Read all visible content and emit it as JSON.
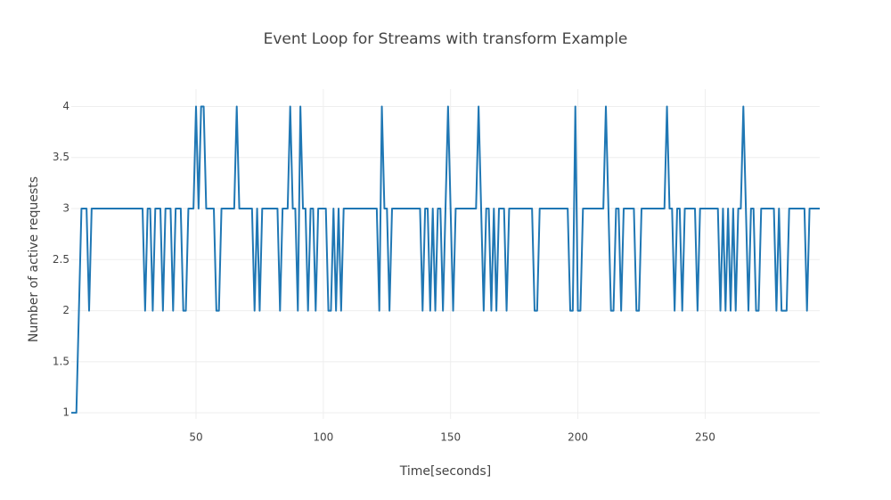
{
  "chart_data": {
    "type": "line",
    "title": "Event Loop for Streams with transform Example",
    "xlabel": "Time[seconds]",
    "ylabel": "Number of active requests",
    "xlim": [
      1,
      295
    ],
    "xticks": [
      50,
      100,
      150,
      200,
      250
    ],
    "ylim": [
      0.94,
      4.17
    ],
    "yticks": [
      1,
      1.5,
      2,
      2.5,
      3,
      3.5,
      4
    ],
    "grid": true,
    "x": [
      1,
      2,
      3,
      4,
      5,
      6,
      7,
      8,
      9,
      10,
      11,
      12,
      13,
      14,
      15,
      16,
      17,
      18,
      19,
      20,
      21,
      22,
      23,
      24,
      25,
      26,
      27,
      28,
      29,
      30,
      31,
      32,
      33,
      34,
      35,
      36,
      37,
      38,
      39,
      40,
      41,
      42,
      43,
      44,
      45,
      46,
      47,
      48,
      49,
      50,
      51,
      52,
      53,
      54,
      55,
      56,
      57,
      58,
      59,
      60,
      61,
      62,
      63,
      64,
      65,
      66,
      67,
      68,
      69,
      70,
      71,
      72,
      73,
      74,
      75,
      76,
      77,
      78,
      79,
      80,
      81,
      82,
      83,
      84,
      85,
      86,
      87,
      88,
      89,
      90,
      91,
      92,
      93,
      94,
      95,
      96,
      97,
      98,
      99,
      100,
      101,
      102,
      103,
      104,
      105,
      106,
      107,
      108,
      109,
      110,
      111,
      112,
      113,
      114,
      115,
      116,
      117,
      118,
      119,
      120,
      121,
      122,
      123,
      124,
      125,
      126,
      127,
      128,
      129,
      130,
      131,
      132,
      133,
      134,
      135,
      136,
      137,
      138,
      139,
      140,
      141,
      142,
      143,
      144,
      145,
      146,
      147,
      148,
      149,
      150,
      151,
      152,
      153,
      154,
      155,
      156,
      157,
      158,
      159,
      160,
      161,
      162,
      163,
      164,
      165,
      166,
      167,
      168,
      169,
      170,
      171,
      172,
      173,
      174,
      175,
      176,
      177,
      178,
      179,
      180,
      181,
      182,
      183,
      184,
      185,
      186,
      187,
      188,
      189,
      190,
      191,
      192,
      193,
      194,
      195,
      196,
      197,
      198,
      199,
      200,
      201,
      202,
      203,
      204,
      205,
      206,
      207,
      208,
      209,
      210,
      211,
      212,
      213,
      214,
      215,
      216,
      217,
      218,
      219,
      220,
      221,
      222,
      223,
      224,
      225,
      226,
      227,
      228,
      229,
      230,
      231,
      232,
      233,
      234,
      235,
      236,
      237,
      238,
      239,
      240,
      241,
      242,
      243,
      244,
      245,
      246,
      247,
      248,
      249,
      250,
      251,
      252,
      253,
      254,
      255,
      256,
      257,
      258,
      259,
      260,
      261,
      262,
      263,
      264,
      265,
      266,
      267,
      268,
      269,
      270,
      271,
      272,
      273,
      274,
      275,
      276,
      277,
      278,
      279,
      280,
      281,
      282,
      283,
      284,
      285,
      286,
      287,
      288,
      289,
      290,
      291,
      292,
      293,
      294,
      295
    ],
    "series": [
      {
        "color": "#1f77b4",
        "values": [
          1,
          1,
          1,
          2,
          3,
          3,
          3,
          2,
          3,
          3,
          3,
          3,
          3,
          3,
          3,
          3,
          3,
          3,
          3,
          3,
          3,
          3,
          3,
          3,
          3,
          3,
          3,
          3,
          3,
          2,
          3,
          3,
          2,
          3,
          3,
          3,
          2,
          3,
          3,
          3,
          2,
          3,
          3,
          3,
          2,
          2,
          3,
          3,
          3,
          4,
          3,
          4,
          4,
          3,
          3,
          3,
          3,
          2,
          2,
          3,
          3,
          3,
          3,
          3,
          3,
          4,
          3,
          3,
          3,
          3,
          3,
          3,
          2,
          3,
          2,
          3,
          3,
          3,
          3,
          3,
          3,
          3,
          2,
          3,
          3,
          3,
          4,
          3,
          3,
          2,
          4,
          3,
          3,
          2,
          3,
          3,
          2,
          3,
          3,
          3,
          3,
          2,
          2,
          3,
          2,
          3,
          2,
          3,
          3,
          3,
          3,
          3,
          3,
          3,
          3,
          3,
          3,
          3,
          3,
          3,
          3,
          2,
          4,
          3,
          3,
          2,
          3,
          3,
          3,
          3,
          3,
          3,
          3,
          3,
          3,
          3,
          3,
          3,
          2,
          3,
          3,
          2,
          3,
          2,
          3,
          3,
          2,
          3,
          4,
          3,
          2,
          3,
          3,
          3,
          3,
          3,
          3,
          3,
          3,
          3,
          4,
          3,
          2,
          3,
          3,
          2,
          3,
          2,
          3,
          3,
          3,
          2,
          3,
          3,
          3,
          3,
          3,
          3,
          3,
          3,
          3,
          3,
          2,
          2,
          3,
          3,
          3,
          3,
          3,
          3,
          3,
          3,
          3,
          3,
          3,
          3,
          2,
          2,
          4,
          2,
          2,
          3,
          3,
          3,
          3,
          3,
          3,
          3,
          3,
          3,
          4,
          3,
          2,
          2,
          3,
          3,
          2,
          3,
          3,
          3,
          3,
          3,
          2,
          2,
          3,
          3,
          3,
          3,
          3,
          3,
          3,
          3,
          3,
          3,
          4,
          3,
          3,
          2,
          3,
          3,
          2,
          3,
          3,
          3,
          3,
          3,
          2,
          3,
          3,
          3,
          3,
          3,
          3,
          3,
          3,
          2,
          3,
          2,
          3,
          2,
          3,
          2,
          3,
          3,
          4,
          3,
          2,
          3,
          3,
          2,
          2,
          3,
          3,
          3,
          3,
          3,
          3,
          2,
          3,
          2,
          2,
          2,
          3,
          3,
          3,
          3,
          3,
          3,
          3,
          2,
          3,
          3,
          3,
          3,
          3
        ]
      }
    ]
  }
}
